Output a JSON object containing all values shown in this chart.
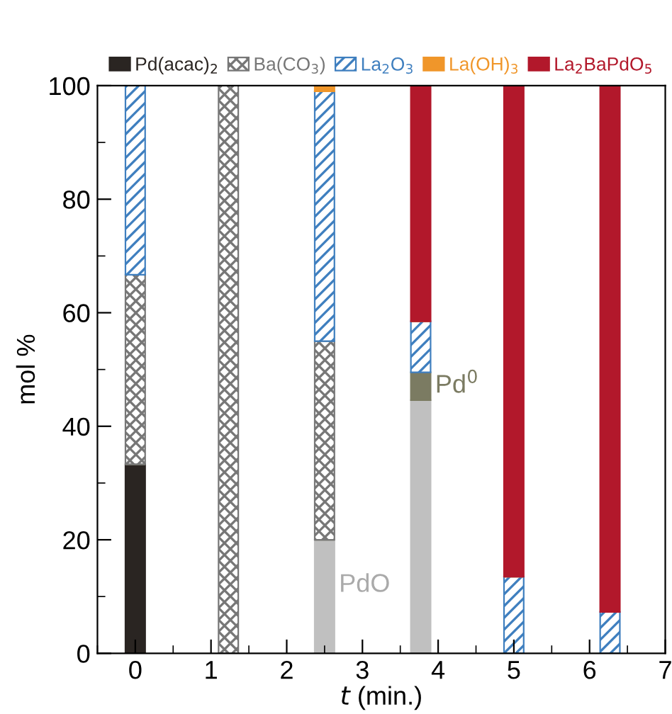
{
  "chart_data": {
    "type": "bar",
    "stacked": true,
    "xlabel": "t (min.)",
    "ylabel": "mol %",
    "x": [
      0,
      1.23,
      2.5,
      3.77,
      5.0,
      6.27
    ],
    "series": [
      {
        "name": "Pd(acac)$_{2}$",
        "color": "#2a2522",
        "values": [
          33.3,
          0,
          0,
          0,
          0,
          0
        ]
      },
      {
        "color": "#c0c0c0",
        "values": [
          0,
          0,
          20,
          44.6,
          0,
          0
        ]
      },
      {
        "color": "#7b7b62",
        "values": [
          0,
          0,
          0,
          4.9,
          0,
          0
        ]
      },
      {
        "name": "Ba(CO$_{3}$)",
        "color": "#777777",
        "values": [
          33.4,
          100,
          35,
          0,
          0,
          0
        ]
      },
      {
        "name": "La$_{2}$O$_{3}$",
        "color": "#3f7fbf",
        "values": [
          33.3,
          0,
          44,
          9,
          13.5,
          7.3
        ]
      },
      {
        "name": "La(OH)$_{3}$",
        "color": "#f0962a",
        "values": [
          0,
          0,
          1,
          0,
          0,
          0
        ]
      },
      {
        "name": "La$_{2}$BaPdO$_{5}$",
        "color": "#b2182b",
        "values": [
          0,
          0,
          0,
          41.5,
          86.5,
          92.7
        ]
      }
    ],
    "annotations": [
      "PdO",
      "Pd$^{0}$"
    ],
    "xlim": [
      -0.5,
      7
    ],
    "xticks": [
      0,
      1,
      2,
      3,
      4,
      5,
      6,
      7
    ],
    "ylim": [
      0,
      100
    ],
    "yticks": [
      0,
      20,
      40,
      60,
      80,
      100
    ],
    "legend": "top",
    "grid": false
  }
}
